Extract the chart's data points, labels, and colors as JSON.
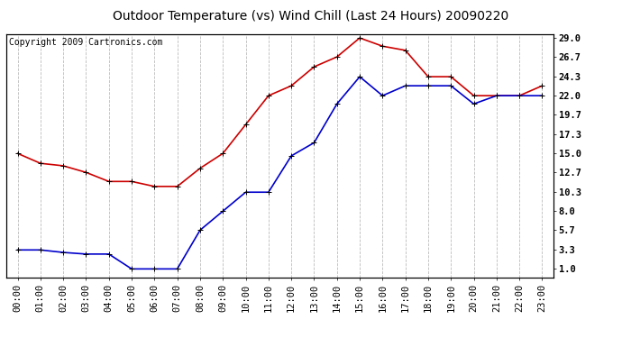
{
  "title": "Outdoor Temperature (vs) Wind Chill (Last 24 Hours) 20090220",
  "copyright": "Copyright 2009 Cartronics.com",
  "hours": [
    "00:00",
    "01:00",
    "02:00",
    "03:00",
    "04:00",
    "05:00",
    "06:00",
    "07:00",
    "08:00",
    "09:00",
    "10:00",
    "11:00",
    "12:00",
    "13:00",
    "14:00",
    "15:00",
    "16:00",
    "17:00",
    "18:00",
    "19:00",
    "20:00",
    "21:00",
    "22:00",
    "23:00"
  ],
  "red_temp": [
    15.0,
    13.8,
    13.5,
    12.7,
    11.6,
    11.6,
    11.0,
    11.0,
    13.2,
    15.0,
    18.5,
    22.0,
    23.2,
    25.5,
    26.7,
    29.0,
    28.0,
    27.5,
    24.3,
    24.3,
    22.0,
    22.0,
    22.0,
    23.2
  ],
  "blue_wind": [
    3.3,
    3.3,
    3.0,
    2.8,
    2.8,
    1.0,
    1.0,
    1.0,
    5.7,
    8.0,
    10.3,
    10.3,
    14.7,
    16.3,
    21.0,
    24.3,
    22.0,
    23.2,
    23.2,
    23.2,
    21.0,
    22.0,
    22.0,
    22.0
  ],
  "red_color": "#cc0000",
  "blue_color": "#0000cc",
  "bg_color": "#ffffff",
  "plot_bg_color": "#ffffff",
  "grid_color": "#bbbbbb",
  "yticks": [
    1.0,
    3.3,
    5.7,
    8.0,
    10.3,
    12.7,
    15.0,
    17.3,
    19.7,
    22.0,
    24.3,
    26.7,
    29.0
  ],
  "ymin": 0.0,
  "ymax": 29.5,
  "title_fontsize": 10,
  "copyright_fontsize": 7,
  "tick_fontsize": 7.5,
  "marker": "+",
  "marker_size": 5,
  "linewidth": 1.2
}
